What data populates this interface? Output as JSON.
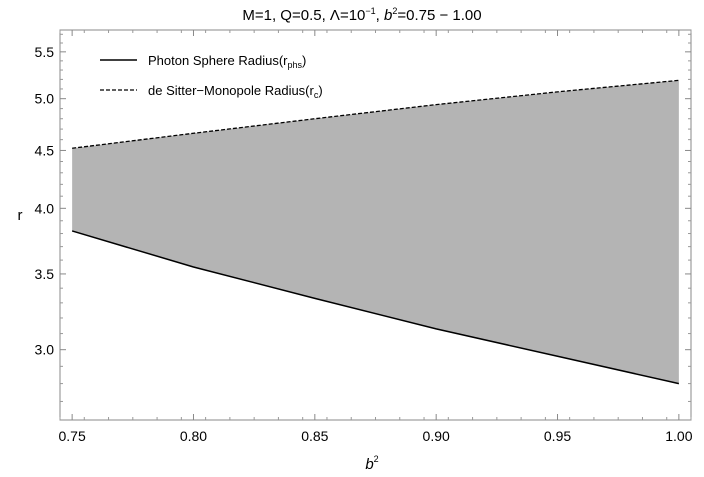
{
  "chart_data": {
    "type": "area",
    "title": {
      "prefix": "M=1, Q=0.5, Λ=10",
      "lambda_exp": "−1",
      "mid": ", ",
      "b_var": "b",
      "b_exp": "2",
      "suffix": "=0.75 − 1.00"
    },
    "xlabel": {
      "base": "b",
      "exp": "2"
    },
    "ylabel": "r",
    "xlim": [
      0.745,
      1.005
    ],
    "ylim": [
      2.6,
      5.75
    ],
    "y_scale": "log",
    "x_ticks": [
      0.75,
      0.8,
      0.85,
      0.9,
      0.95,
      1.0
    ],
    "x_tick_labels": [
      "0.75",
      "0.80",
      "0.85",
      "0.90",
      "0.95",
      "1.00"
    ],
    "y_ticks": [
      3.0,
      3.5,
      4.0,
      4.5,
      5.0,
      5.5
    ],
    "y_tick_labels": [
      "3.0",
      "3.5",
      "4.0",
      "4.5",
      "5.0",
      "5.5"
    ],
    "x": [
      0.75,
      0.8,
      0.85,
      0.9,
      0.95,
      1.0
    ],
    "series": [
      {
        "name": "Photon Sphere Radius(r",
        "name_sub": "phs",
        "name_close": ")",
        "style": "solid",
        "values": [
          3.82,
          3.55,
          3.33,
          3.13,
          2.96,
          2.8
        ]
      },
      {
        "name": "de Sitter−Monopole Radius(r",
        "name_sub": "c",
        "name_close": ")",
        "style": "dashed",
        "values": [
          4.52,
          4.66,
          4.8,
          4.94,
          5.07,
          5.19
        ]
      }
    ],
    "fill_between": true,
    "fill_color": "#b4b4b4",
    "line_color": "#000000",
    "grid": false,
    "legend_position": "top-left"
  }
}
